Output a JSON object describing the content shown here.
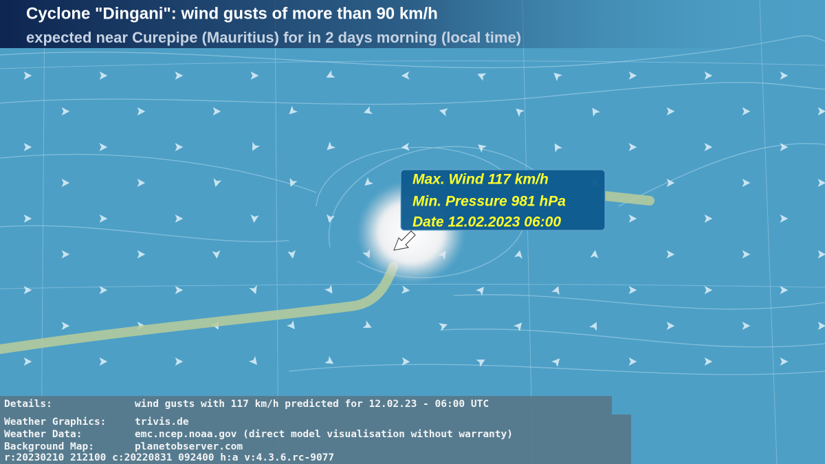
{
  "header": {
    "title": "Cyclone \"Dingani\": wind gusts of more than 90 km/h",
    "subtitle": "expected near Curepipe (Mauritius) for in 2 days morning (local time)"
  },
  "infobox": {
    "lines": [
      "Max. Wind 117 km/h",
      "Min. Pressure 981 hPa",
      "Date 12.02.2023 06:00"
    ]
  },
  "footer": {
    "rows": [
      [
        "Details:",
        "wind gusts with 117 km/h predicted for 12.02.23 - 06:00 UTC"
      ],
      [
        "Weather Graphics:",
        "trivis.de"
      ],
      [
        "Weather Data:",
        "emc.ncep.noaa.gov (direct model visualisation without warranty)"
      ],
      [
        "Background Map:",
        "planetobserver.com"
      ]
    ],
    "version": "r:20230210 212100 c:20220831 092400 h:a v:4.3.6.rc-9077"
  }
}
